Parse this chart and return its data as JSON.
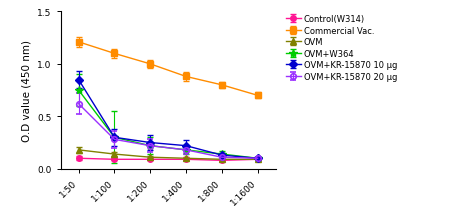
{
  "x_labels": [
    "1:50",
    "1:100",
    "1:200",
    "1:400",
    "1:800",
    "1:1600"
  ],
  "x_values": [
    0,
    1,
    2,
    3,
    4,
    5
  ],
  "series": {
    "Control(W314)": {
      "y": [
        0.1,
        0.09,
        0.09,
        0.09,
        0.08,
        0.09
      ],
      "yerr": [
        0.02,
        0.01,
        0.01,
        0.01,
        0.01,
        0.01
      ],
      "color": "#FF1493",
      "marker": "o",
      "markersize": 4,
      "linestyle": "-",
      "fillstyle": "full"
    },
    "Commercial Vac.": {
      "y": [
        1.21,
        1.1,
        1.0,
        0.88,
        0.8,
        0.7
      ],
      "yerr": [
        0.05,
        0.04,
        0.04,
        0.04,
        0.03,
        0.03
      ],
      "color": "#FF8C00",
      "marker": "s",
      "markersize": 4,
      "linestyle": "-",
      "fillstyle": "full"
    },
    "OVM": {
      "y": [
        0.18,
        0.14,
        0.11,
        0.1,
        0.09,
        0.09
      ],
      "yerr": [
        0.03,
        0.02,
        0.01,
        0.01,
        0.01,
        0.01
      ],
      "color": "#808000",
      "marker": "^",
      "markersize": 4,
      "linestyle": "-",
      "fillstyle": "full"
    },
    "OVM+W364": {
      "y": [
        0.75,
        0.3,
        0.22,
        0.18,
        0.14,
        0.1
      ],
      "yerr": [
        0.15,
        0.25,
        0.08,
        0.04,
        0.03,
        0.01
      ],
      "color": "#00CC00",
      "marker": "*",
      "markersize": 6,
      "linestyle": "-",
      "fillstyle": "full"
    },
    "OVM+KR-15870 10 μg": {
      "y": [
        0.85,
        0.3,
        0.25,
        0.22,
        0.13,
        0.1
      ],
      "yerr": [
        0.08,
        0.08,
        0.07,
        0.05,
        0.02,
        0.01
      ],
      "color": "#0000CD",
      "marker": "D",
      "markersize": 4,
      "linestyle": "-",
      "fillstyle": "full"
    },
    "OVM+KR-15870 20 μg": {
      "y": [
        0.62,
        0.28,
        0.22,
        0.18,
        0.11,
        0.1
      ],
      "yerr": [
        0.1,
        0.08,
        0.06,
        0.04,
        0.02,
        0.01
      ],
      "color": "#9B30FF",
      "marker": "o",
      "markersize": 4,
      "linestyle": "-",
      "fillstyle": "none"
    }
  },
  "ylabel": "O.D value (450 nm)",
  "ylim": [
    0.0,
    1.5
  ],
  "yticks": [
    0.0,
    0.5,
    1.0,
    1.5
  ],
  "background_color": "#FFFFFF",
  "legend_fontsize": 6.0,
  "axis_fontsize": 7.5
}
